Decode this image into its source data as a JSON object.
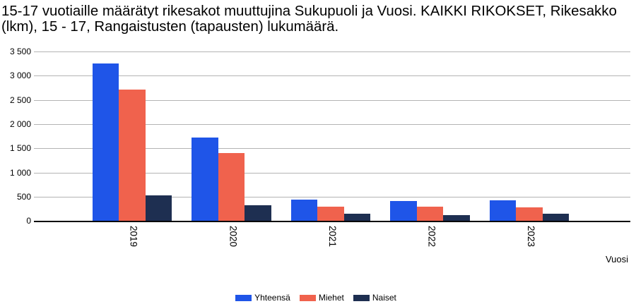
{
  "title_lines": [
    "15-17 vuotiaille määrätyt rikesakot muuttujina Sukupuoli ja Vuosi. KAIKKI RIKOKSET, Rikesakko",
    "(lkm), 15 - 17, Rangaistusten (tapausten) lukumäärä."
  ],
  "chart_data": {
    "type": "bar",
    "title": "15-17 vuotiaille määrätyt rikesakot muuttujina Sukupuoli ja Vuosi. KAIKKI RIKOKSET, Rikesakko (lkm), 15 - 17, Rangaistusten (tapausten) lukumäärä.",
    "categories": [
      "2019",
      "2020",
      "2021",
      "2022",
      "2023"
    ],
    "series": [
      {
        "name": "Yhteensä",
        "color": "#1f55e8",
        "values": [
          3245,
          1724,
          437,
          408,
          423
        ]
      },
      {
        "name": "Miehet",
        "color": "#f0624d",
        "values": [
          2716,
          1398,
          293,
          293,
          279
        ]
      },
      {
        "name": "Naiset",
        "color": "#1e2f51",
        "values": [
          529,
          326,
          144,
          115,
          144
        ]
      }
    ],
    "xlabel": "Vuosi",
    "ylabel": "",
    "ylim": [
      0,
      3500
    ],
    "ytick_step": 500,
    "yticks": [
      0,
      500,
      1000,
      1500,
      2000,
      2500,
      3000,
      3500
    ],
    "ytick_labels": [
      "0",
      "500",
      "1 000",
      "1 500",
      "2 000",
      "2 500",
      "3 000",
      "3 500"
    ],
    "grid": true,
    "legend_position": "bottom",
    "colors": {
      "gridline": "#b3b3b3",
      "axis_line": "#000000",
      "text": "#000000",
      "background": "#ffffff"
    }
  }
}
